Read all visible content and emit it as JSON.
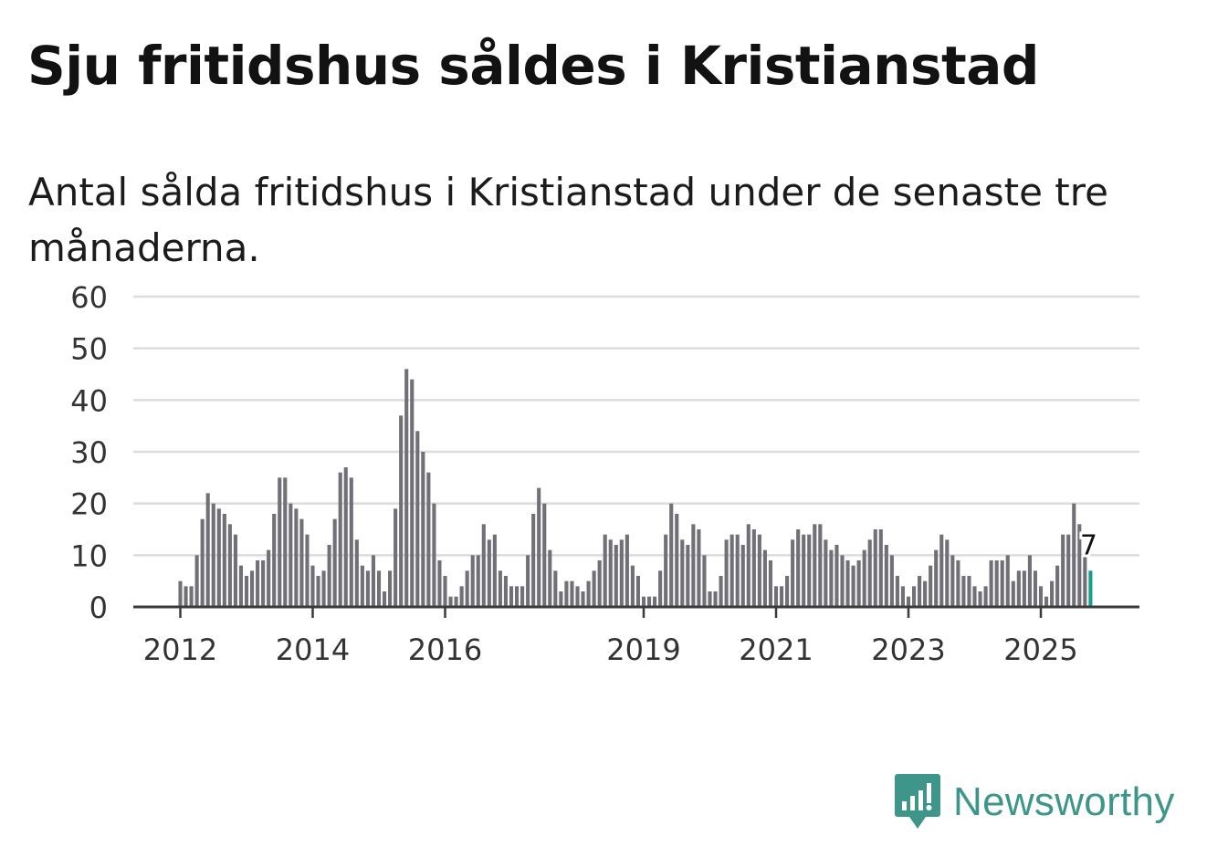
{
  "header": {
    "title": "Sju fritidshus såldes i Kristianstad",
    "subtitle": "Antal sålda fritidshus i Kristianstad under de senaste tre månaderna."
  },
  "chart_data": {
    "type": "bar",
    "title": "Sju fritidshus såldes i Kristianstad",
    "subtitle": "Antal sålda fritidshus i Kristianstad under de senaste tre månaderna.",
    "xlabel": "",
    "ylabel": "",
    "ylim": [
      0,
      60
    ],
    "yticks": [
      0,
      10,
      20,
      30,
      40,
      50,
      60
    ],
    "x_tick_labels": [
      "2012",
      "2014",
      "2016",
      "2019",
      "2021",
      "2023",
      "2025"
    ],
    "start": "2012-01",
    "values": [
      5,
      4,
      4,
      10,
      17,
      22,
      20,
      19,
      18,
      16,
      14,
      8,
      6,
      7,
      9,
      9,
      11,
      18,
      25,
      25,
      20,
      19,
      17,
      14,
      8,
      6,
      7,
      12,
      17,
      26,
      27,
      25,
      13,
      8,
      7,
      10,
      7,
      3,
      7,
      19,
      37,
      46,
      44,
      34,
      30,
      26,
      20,
      9,
      6,
      2,
      2,
      4,
      7,
      10,
      10,
      16,
      13,
      14,
      7,
      6,
      4,
      4,
      4,
      10,
      18,
      23,
      20,
      11,
      7,
      3,
      5,
      5,
      4,
      3,
      5,
      7,
      9,
      14,
      13,
      12,
      13,
      14,
      8,
      6,
      2,
      2,
      2,
      7,
      14,
      20,
      18,
      13,
      12,
      16,
      15,
      10,
      3,
      3,
      6,
      13,
      14,
      14,
      12,
      16,
      15,
      14,
      11,
      9,
      4,
      4,
      6,
      13,
      15,
      14,
      14,
      16,
      16,
      13,
      11,
      12,
      10,
      9,
      8,
      9,
      11,
      13,
      15,
      15,
      12,
      10,
      6,
      4,
      2,
      4,
      6,
      5,
      8,
      11,
      14,
      13,
      10,
      9,
      6,
      6,
      4,
      3,
      4,
      9,
      9,
      9,
      10,
      5,
      7,
      7,
      10,
      7,
      4,
      2,
      5,
      8,
      14,
      14,
      20,
      16,
      10,
      7
    ],
    "highlight": {
      "label": "7",
      "value": 7,
      "color": "#1a9e8c"
    },
    "bar_color": "#717077",
    "grid": true
  },
  "branding": {
    "logo_text": "Newsworthy",
    "logo_color": "#3e968a",
    "logo_icon": "newsworthy-bar-chart-icon"
  }
}
